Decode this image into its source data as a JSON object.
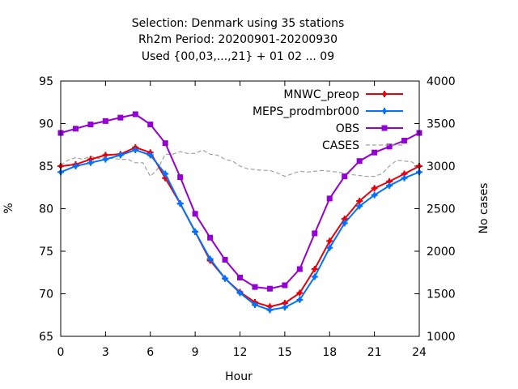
{
  "chart_data": {
    "type": "line",
    "title_lines": [
      "Selection: Denmark using    35 stations",
      "Rh2m   Period: 20200901-20200930",
      "Used {00,03,...,21} + 01 02 ... 09"
    ],
    "xlabel": "Hour",
    "ylabel": "%",
    "y2label": "No cases",
    "xlim": [
      0,
      24
    ],
    "ylim": [
      65,
      95
    ],
    "y2lim": [
      1000,
      4000
    ],
    "xticks": [
      "0",
      "3",
      "6",
      "9",
      "12",
      "15",
      "18",
      "21",
      "24"
    ],
    "yticks": [
      "65",
      "70",
      "75",
      "80",
      "85",
      "90",
      "95"
    ],
    "y2ticks": [
      "1000",
      "1500",
      "2000",
      "2500",
      "3000",
      "3500",
      "4000"
    ],
    "grid": false,
    "legend_position": "top-right",
    "x": [
      0,
      1,
      2,
      3,
      4,
      5,
      6,
      7,
      8,
      9,
      10,
      11,
      12,
      13,
      14,
      15,
      16,
      17,
      18,
      19,
      20,
      21,
      22,
      23,
      24
    ],
    "series": [
      {
        "name": "MNWC_preop",
        "color": "#e8000b",
        "marker": "cross",
        "values": [
          85.0,
          85.2,
          85.8,
          86.3,
          86.4,
          87.2,
          86.6,
          83.6,
          80.6,
          77.3,
          73.9,
          71.8,
          70.2,
          69.0,
          68.5,
          68.9,
          70.1,
          72.9,
          76.2,
          78.8,
          80.9,
          82.4,
          83.2,
          84.1,
          85.0
        ]
      },
      {
        "name": "MEPS_prodmbr000",
        "color": "#0072ff",
        "marker": "cross",
        "values": [
          84.3,
          85.0,
          85.4,
          85.8,
          86.3,
          86.9,
          86.3,
          84.1,
          80.6,
          77.3,
          74.1,
          71.8,
          70.1,
          68.7,
          68.1,
          68.4,
          69.3,
          72.0,
          75.4,
          78.3,
          80.3,
          81.6,
          82.7,
          83.6,
          84.3
        ]
      },
      {
        "name": "OBS",
        "color": "#9400d3",
        "marker": "square",
        "values": [
          88.9,
          89.4,
          89.9,
          90.3,
          90.7,
          91.1,
          89.9,
          87.7,
          83.7,
          79.4,
          76.6,
          74.0,
          71.9,
          70.8,
          70.6,
          71.0,
          72.9,
          77.1,
          81.2,
          83.8,
          85.6,
          86.6,
          87.3,
          88.0,
          88.9
        ]
      },
      {
        "name": "CASES",
        "color": "#a0a0a0",
        "axis": "right",
        "dashed": true,
        "x": [
          0,
          0.5,
          1,
          1.5,
          2,
          2.5,
          3,
          3.5,
          4,
          4.5,
          5,
          5.5,
          6,
          6.5,
          7,
          7.5,
          8,
          8.5,
          9,
          9.5,
          10,
          10.5,
          11,
          11.5,
          12,
          12.5,
          13,
          13.5,
          14,
          14.5,
          15,
          15.5,
          16,
          16.5,
          17,
          17.5,
          18,
          18.5,
          19,
          19.5,
          20,
          20.5,
          21,
          21.5,
          22,
          22.5,
          23,
          23.5,
          24
        ],
        "values": [
          3010,
          3070,
          3100,
          3080,
          3120,
          3090,
          3100,
          3090,
          3080,
          3080,
          3040,
          3040,
          2880,
          2970,
          3140,
          3140,
          3170,
          3150,
          3150,
          3190,
          3140,
          3130,
          3080,
          3060,
          3000,
          2970,
          2960,
          2950,
          2950,
          2920,
          2880,
          2910,
          2940,
          2930,
          2940,
          2950,
          2940,
          2930,
          2920,
          2900,
          2890,
          2880,
          2880,
          2910,
          3000,
          3070,
          3060,
          3050,
          2990
        ]
      }
    ]
  }
}
